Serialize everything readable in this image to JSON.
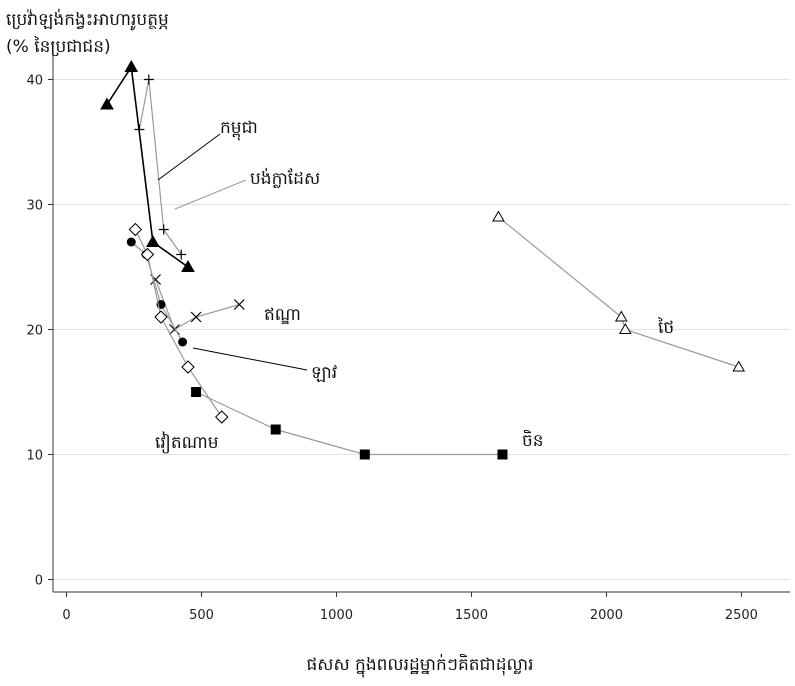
{
  "chart_data": {
    "type": "line",
    "title": "ប្រេវ៉ាឡង់កង្វះអាហារូបត្ថម្ភ",
    "subtitle": "(% នៃប្រជាជន)",
    "xlabel": "ផសស ក្នុងពលរដ្ឋម្នាក់ៗគិតជាដុល្លារ",
    "ylabel": "",
    "xlim": [
      -50,
      2680
    ],
    "ylim": [
      -1,
      43
    ],
    "xticks": [
      0,
      500,
      1000,
      1500,
      2000,
      2500
    ],
    "yticks": [
      0,
      10,
      20,
      30,
      40
    ],
    "grid": true,
    "series": [
      {
        "name": "កម្ពុជា",
        "color": "#000000",
        "marker": "triangle-filled",
        "x": [
          150,
          240,
          320,
          450
        ],
        "y": [
          38,
          41,
          27,
          25
        ]
      },
      {
        "name": "បង់ក្លាដែស",
        "color": "#999999",
        "marker": "plus",
        "x": [
          270,
          305,
          360,
          425
        ],
        "y": [
          36,
          40,
          28,
          26
        ]
      },
      {
        "name": "ឥណ្ឌា",
        "color": "#999999",
        "marker": "x",
        "x": [
          330,
          400,
          480,
          640
        ],
        "y": [
          24,
          20,
          21,
          22
        ]
      },
      {
        "name": "ឡាវ",
        "color": "#999999",
        "marker": "circle-filled",
        "x": [
          240,
          295,
          350,
          430
        ],
        "y": [
          27,
          26,
          22,
          19
        ]
      },
      {
        "name": "វៀតណាម",
        "color": "#999999",
        "marker": "diamond-open",
        "x": [
          255,
          300,
          350,
          450,
          575
        ],
        "y": [
          28,
          26,
          21,
          17,
          13
        ]
      },
      {
        "name": "ចិន",
        "color": "#999999",
        "marker": "square-filled",
        "x": [
          480,
          775,
          1105,
          1615
        ],
        "y": [
          15,
          12,
          10,
          10
        ]
      },
      {
        "name": "ថៃ",
        "color": "#999999",
        "marker": "triangle-open",
        "x": [
          1600,
          2055,
          2070,
          2490
        ],
        "y": [
          29,
          21,
          20,
          17
        ]
      }
    ],
    "annotations": [
      {
        "text": "កម្ពុជា",
        "series": "កម្ពុជា"
      },
      {
        "text": "បង់ក្លាដែស",
        "series": "បង់ក្លាដែស"
      },
      {
        "text": "ឥណ្ឌា",
        "series": "ឥណ្ឌា"
      },
      {
        "text": "ឡាវ",
        "series": "ឡាវ"
      },
      {
        "text": "វៀតណាម",
        "series": "វៀតណាម"
      },
      {
        "text": "ចិន",
        "series": "ចិន"
      },
      {
        "text": "ថៃ",
        "series": "ថៃ"
      }
    ]
  }
}
